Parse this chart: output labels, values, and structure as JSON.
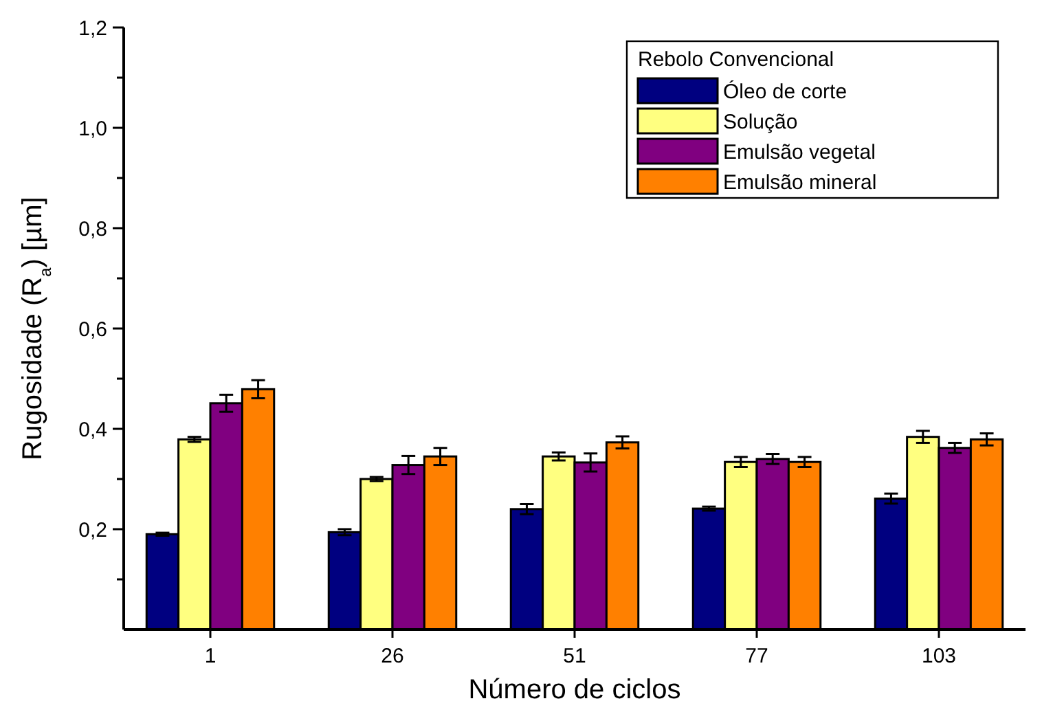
{
  "chart_data": {
    "type": "bar",
    "xlabel": "Número de ciclos",
    "ylabel": "Rugosidade (R$_{a}$) [µm]",
    "legend_title": "Rebolo Convencional",
    "legend": "top right",
    "categories": [
      "1",
      "26",
      "51",
      "77",
      "103"
    ],
    "series": [
      {
        "name": "Óleo de corte",
        "color": "#000080",
        "values": [
          0.19,
          0.194,
          0.24,
          0.241,
          0.261
        ],
        "errors": [
          0.003,
          0.006,
          0.01,
          0.004,
          0.01
        ]
      },
      {
        "name": "Solução",
        "color": "#ffff80",
        "values": [
          0.379,
          0.3,
          0.345,
          0.334,
          0.384
        ],
        "errors": [
          0.005,
          0.004,
          0.008,
          0.01,
          0.012
        ]
      },
      {
        "name": "Emulsão vegetal",
        "color": "#800080",
        "values": [
          0.451,
          0.328,
          0.333,
          0.34,
          0.362
        ],
        "errors": [
          0.017,
          0.018,
          0.018,
          0.01,
          0.01
        ]
      },
      {
        "name": "Emulsão mineral",
        "color": "#ff8000",
        "values": [
          0.479,
          0.345,
          0.373,
          0.334,
          0.379
        ],
        "errors": [
          0.018,
          0.017,
          0.012,
          0.01,
          0.012
        ]
      }
    ],
    "ylim": [
      0,
      1.2
    ],
    "yticks": [
      {
        "value": 0.1,
        "label": null
      },
      {
        "value": 0.2,
        "label": "0,2"
      },
      {
        "value": 0.3,
        "label": null
      },
      {
        "value": 0.4,
        "label": "0,4"
      },
      {
        "value": 0.5,
        "label": null
      },
      {
        "value": 0.6,
        "label": "0,6"
      },
      {
        "value": 0.7,
        "label": null
      },
      {
        "value": 0.8,
        "label": "0,8"
      },
      {
        "value": 0.9,
        "label": null
      },
      {
        "value": 1.0,
        "label": "1,0"
      },
      {
        "value": 1.1,
        "label": null
      },
      {
        "value": 1.2,
        "label": "1,2"
      }
    ],
    "grid": false
  }
}
